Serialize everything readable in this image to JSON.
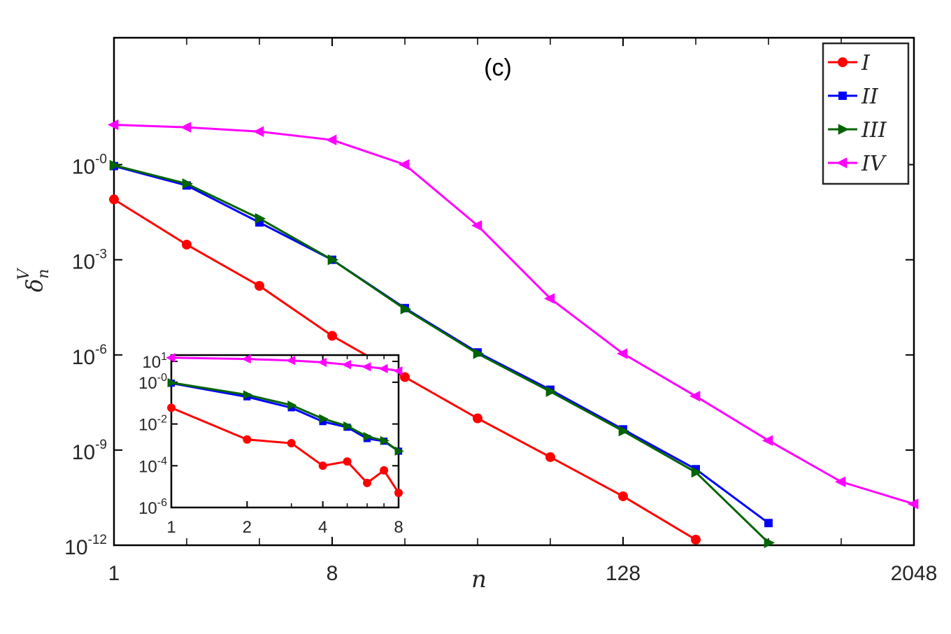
{
  "chart_data": [
    {
      "type": "line",
      "panel_label": "(c)",
      "xlabel": "n",
      "ylabel": "δ",
      "ylabel_sub": "n",
      "ylabel_sup": "V",
      "x_scale": "log2",
      "y_scale": "log10",
      "xlim": [
        1,
        2048
      ],
      "ylim": [
        1e-12,
        10000
      ],
      "x_ticks": [
        {
          "value": 1,
          "label": "1"
        },
        {
          "value": 8,
          "label": "8"
        },
        {
          "value": 128,
          "label": "128"
        },
        {
          "value": 2048,
          "label": "2048"
        }
      ],
      "y_ticks": [
        {
          "value": 1,
          "base": "10",
          "exp": "-0"
        },
        {
          "value": 0.001,
          "base": "10",
          "exp": "-3"
        },
        {
          "value": 1e-06,
          "base": "10",
          "exp": "-6"
        },
        {
          "value": 1e-09,
          "base": "10",
          "exp": "-9"
        },
        {
          "value": 1e-12,
          "base": "10",
          "exp": "-12"
        }
      ],
      "legend_position": "top-right",
      "series": [
        {
          "name": "I",
          "color": "#ff0000",
          "marker": "circle",
          "x": [
            1,
            2,
            4,
            8,
            16,
            32,
            64,
            128,
            256
          ],
          "y": [
            0.08,
            0.003,
            0.00015,
            4e-06,
            2e-07,
            1e-08,
            6e-10,
            3.5e-11,
            1.5e-12
          ]
        },
        {
          "name": "II",
          "color": "#0000ff",
          "marker": "square",
          "x": [
            1,
            2,
            4,
            8,
            16,
            32,
            64,
            128,
            256,
            512
          ],
          "y": [
            0.9,
            0.22,
            0.015,
            0.001,
            3e-05,
            1.2e-06,
            8e-08,
            4.5e-09,
            2.5e-10,
            5e-12
          ]
        },
        {
          "name": "III",
          "color": "#006400",
          "marker": "triangle-right",
          "x": [
            1,
            2,
            4,
            8,
            16,
            32,
            64,
            128,
            256,
            512
          ],
          "y": [
            0.95,
            0.25,
            0.02,
            0.001,
            2.8e-05,
            1.1e-06,
            7e-08,
            4e-09,
            2e-10,
            1.2e-12
          ]
        },
        {
          "name": "IV",
          "color": "#ff00ff",
          "marker": "triangle-left",
          "x": [
            1,
            2,
            4,
            8,
            16,
            32,
            64,
            128,
            256,
            512,
            1024,
            2048
          ],
          "y": [
            18,
            15,
            11,
            6,
            1,
            0.012,
            6e-05,
            1.1e-06,
            5e-08,
            2e-09,
            1e-10,
            2e-11
          ]
        }
      ]
    },
    {
      "type": "line",
      "x_scale": "log2",
      "y_scale": "log10",
      "xlim": [
        1,
        8
      ],
      "ylim": [
        1e-06,
        20
      ],
      "x_ticks": [
        {
          "value": 1,
          "label": "1"
        },
        {
          "value": 2,
          "label": "2"
        },
        {
          "value": 4,
          "label": "4"
        },
        {
          "value": 8,
          "label": "8"
        }
      ],
      "y_ticks": [
        {
          "value": 10,
          "base": "10",
          "exp": "1"
        },
        {
          "value": 1,
          "base": "10",
          "exp": "-0"
        },
        {
          "value": 0.01,
          "base": "10",
          "exp": "-2"
        },
        {
          "value": 0.0001,
          "base": "10",
          "exp": "-4"
        },
        {
          "value": 1e-06,
          "base": "10",
          "exp": "-6"
        }
      ],
      "series": [
        {
          "name": "I",
          "color": "#ff0000",
          "marker": "circle",
          "x": [
            1,
            2,
            3,
            4,
            5,
            6,
            7,
            8
          ],
          "y": [
            0.06,
            0.0018,
            0.0012,
            0.0001,
            0.00016,
            1.5e-05,
            6e-05,
            5e-06
          ]
        },
        {
          "name": "II",
          "color": "#0000ff",
          "marker": "square",
          "x": [
            1,
            2,
            3,
            4,
            5,
            6,
            7,
            8
          ],
          "y": [
            0.9,
            0.2,
            0.06,
            0.013,
            0.007,
            0.002,
            0.0015,
            0.0005
          ]
        },
        {
          "name": "III",
          "color": "#006400",
          "marker": "triangle-right",
          "x": [
            1,
            2,
            3,
            4,
            5,
            6,
            7,
            8
          ],
          "y": [
            0.95,
            0.25,
            0.08,
            0.018,
            0.008,
            0.0025,
            0.0016,
            0.0005
          ]
        },
        {
          "name": "IV",
          "color": "#ff00ff",
          "marker": "triangle-left",
          "x": [
            1,
            2,
            3,
            4,
            5,
            6,
            7,
            8
          ],
          "y": [
            15,
            13,
            11,
            9,
            7,
            5.5,
            4.5,
            3.5
          ]
        }
      ]
    }
  ]
}
